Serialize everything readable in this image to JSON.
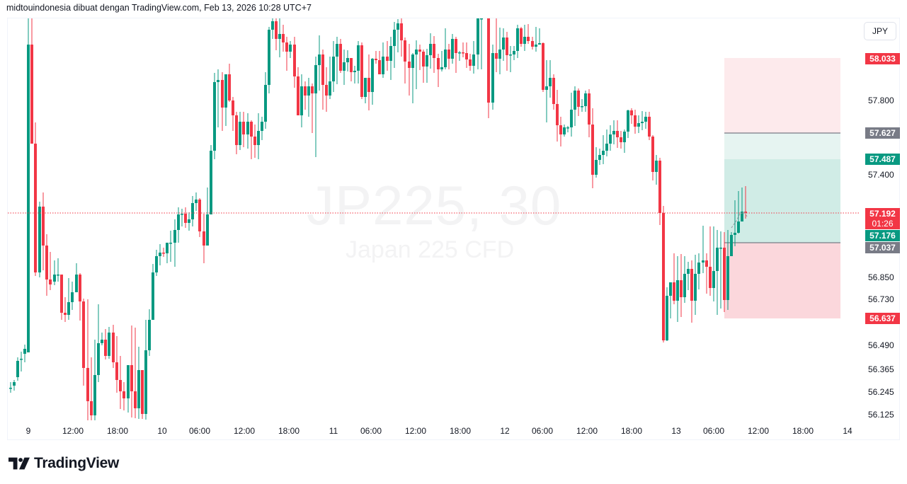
{
  "header": {
    "caption": "midtouindonesia dibuat dengan TradingView.com, Feb 13, 2026 10:28 UTC+7"
  },
  "symbol": {
    "ticker_interval": "JP225, 30",
    "description": "Japan 225 CFD",
    "currency": "JPY"
  },
  "price_axis": {
    "ticks": [
      "57.800",
      "57.400",
      "56.850",
      "56.730",
      "56.490",
      "56.365",
      "56.245",
      "56.125"
    ],
    "labels": {
      "stop_loss": "58.033",
      "entry_gray": "57.627",
      "target_green": "57.487",
      "last_price": "57.192",
      "countdown": "01:26",
      "bid_green": "57.176",
      "gray_lower": "57.037",
      "take_profit": "56.637"
    }
  },
  "time_axis": {
    "ticks": [
      "9",
      "12:00",
      "18:00",
      "10",
      "06:00",
      "12:00",
      "18:00",
      "11",
      "06:00",
      "12:00",
      "18:00",
      "12",
      "06:00",
      "12:00",
      "18:00",
      "13",
      "06:00",
      "12:00",
      "18:00",
      "14"
    ]
  },
  "footer": {
    "brand": "TradingView"
  },
  "colors": {
    "up": "#089981",
    "down": "#f23645",
    "gray_label": "#787b86",
    "last_price_line": "#f23645"
  },
  "chart_data": {
    "type": "candlestick",
    "title": "JP225, 30",
    "subtitle": "Japan 225 CFD",
    "xlabel": "",
    "ylabel": "JPY",
    "ylim": [
      56.07,
      58.24
    ],
    "x_ticks": [
      "9",
      "12:00",
      "18:00",
      "10",
      "06:00",
      "12:00",
      "18:00",
      "11",
      "06:00",
      "12:00",
      "18:00",
      "12",
      "06:00",
      "12:00",
      "18:00",
      "13",
      "06:00",
      "12:00",
      "18:00",
      "14"
    ],
    "y_ticks": [
      57.8,
      57.4,
      56.85,
      56.73,
      56.49,
      56.365,
      56.245,
      56.125
    ],
    "last_price": 57.192,
    "position_tool": {
      "type": "short",
      "stop_loss": 58.033,
      "entry": 57.627,
      "target_level": 57.487,
      "lower_level": 57.037,
      "take_profit": 56.637
    },
    "grid": false,
    "legend": "none"
  }
}
